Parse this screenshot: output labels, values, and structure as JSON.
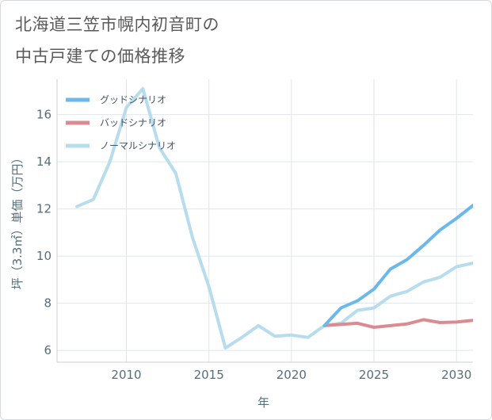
{
  "title_lines": [
    "北海道三笠市幌内初音町の",
    "中古戸建ての価格推移"
  ],
  "chart_data": {
    "type": "line",
    "title": "北海道三笠市幌内初音町の中古戸建ての価格推移",
    "xlabel": "年",
    "ylabel": "坪（3.3㎡）単価（万円）",
    "xlim": [
      2005.8,
      2031
    ],
    "ylim": [
      5.5,
      17.5
    ],
    "xticks": [
      2010,
      2015,
      2020,
      2025,
      2030
    ],
    "yticks": [
      6,
      8,
      10,
      12,
      14,
      16
    ],
    "grid": true,
    "legend_position": "top-left",
    "series": [
      {
        "name": "グッドシナリオ",
        "color": "#6cb8ea",
        "x": [
          2022,
          2023,
          2024,
          2025,
          2026,
          2027,
          2028,
          2029,
          2030,
          2031
        ],
        "y": [
          7.05,
          7.8,
          8.1,
          8.6,
          9.45,
          9.85,
          10.45,
          11.1,
          11.6,
          12.15
        ]
      },
      {
        "name": "バッドシナリオ",
        "color": "#dc8a92",
        "x": [
          2022,
          2023,
          2024,
          2025,
          2026,
          2027,
          2028,
          2029,
          2030,
          2031
        ],
        "y": [
          7.05,
          7.1,
          7.15,
          6.98,
          7.05,
          7.12,
          7.3,
          7.18,
          7.2,
          7.27
        ]
      },
      {
        "name": "ノーマルシナリオ",
        "color": "#b7dcee",
        "x": [
          2007,
          2008,
          2009,
          2010,
          2011,
          2012,
          2013,
          2014,
          2015,
          2016,
          2017,
          2018,
          2019,
          2020,
          2021,
          2022,
          2023,
          2024,
          2025,
          2026,
          2027,
          2028,
          2029,
          2030,
          2031
        ],
        "y": [
          12.1,
          12.4,
          14.0,
          16.3,
          17.1,
          14.6,
          13.5,
          10.8,
          8.7,
          6.1,
          6.55,
          7.05,
          6.6,
          6.65,
          6.55,
          7.05,
          7.15,
          7.7,
          7.8,
          8.3,
          8.5,
          8.9,
          9.1,
          9.55,
          9.7
        ]
      }
    ]
  }
}
